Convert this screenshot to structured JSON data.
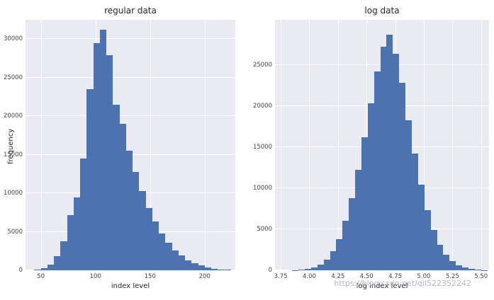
{
  "colors": {
    "bar": "#4c72b0",
    "panel": "#eaeaf2",
    "grid": "#ffffff",
    "title_text": "#262626",
    "tick_text": "#444444",
    "watermark": "#b0b0be"
  },
  "watermark": {
    "text": "https://blog.csdn.net/qil522352242"
  },
  "chart_data": [
    {
      "type": "bar",
      "subtype": "histogram",
      "title": "regular data",
      "xlabel": "index level",
      "ylabel": "frequency",
      "bin_start": 44,
      "bin_width": 6,
      "values": [
        60,
        250,
        700,
        1800,
        3800,
        7200,
        9500,
        14500,
        23500,
        29500,
        31200,
        27900,
        21500,
        19000,
        15500,
        12800,
        10300,
        8100,
        6300,
        4800,
        3600,
        2600,
        1900,
        1300,
        900,
        600,
        380,
        230,
        130,
        70
      ],
      "xlim": [
        36,
        228
      ],
      "ylim": [
        0,
        32500
      ],
      "x_ticks": [
        50,
        100,
        150,
        200
      ],
      "x_tick_labels": [
        "50",
        "100",
        "150",
        "200"
      ],
      "y_ticks": [
        0,
        5000,
        10000,
        15000,
        20000,
        25000,
        30000
      ],
      "y_tick_labels": [
        "0",
        "5000",
        "10000",
        "15000",
        "20000",
        "25000",
        "30000"
      ],
      "grid": true,
      "legend": false
    },
    {
      "type": "bar",
      "subtype": "histogram",
      "title": "log data",
      "xlabel": "log index level",
      "ylabel": "",
      "bin_start": 3.85,
      "bin_width": 0.055,
      "values": [
        40,
        90,
        180,
        380,
        700,
        1300,
        2300,
        3800,
        6000,
        8800,
        12200,
        16200,
        20300,
        24200,
        27200,
        28700,
        26400,
        22800,
        18300,
        14200,
        10400,
        7300,
        4900,
        3100,
        1900,
        1100,
        600,
        320,
        160,
        80,
        40
      ],
      "xlim": [
        3.7,
        5.57
      ],
      "ylim": [
        0,
        30500
      ],
      "x_ticks": [
        3.75,
        4.0,
        4.25,
        4.5,
        4.75,
        5.0,
        5.25,
        5.5
      ],
      "x_tick_labels": [
        "3.75",
        "4.00",
        "4.25",
        "4.50",
        "4.75",
        "5.00",
        "5.25",
        "5.50"
      ],
      "y_ticks": [
        0,
        5000,
        10000,
        15000,
        20000,
        25000
      ],
      "y_tick_labels": [
        "0",
        "5000",
        "10000",
        "15000",
        "20000",
        "25000"
      ],
      "grid": true,
      "legend": false
    }
  ]
}
